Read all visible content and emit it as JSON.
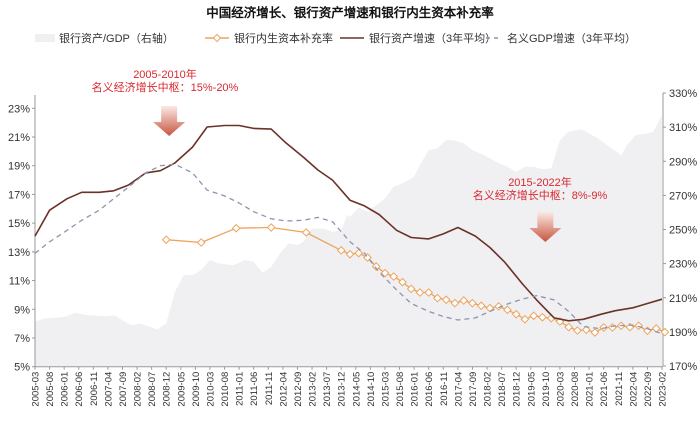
{
  "chart_data": {
    "type": "line",
    "title": "中国经济增长、银行资产增速和银行内生资本补充率",
    "x_ticks": [
      "2005-03",
      "2005-08",
      "2006-01",
      "2006-06",
      "2006-11",
      "2007-04",
      "2007-09",
      "2008-02",
      "2008-07",
      "2008-12",
      "2009-05",
      "2009-10",
      "2010-03",
      "2010-08",
      "2011-01",
      "2011-06",
      "2011-11",
      "2012-04",
      "2012-09",
      "2013-02",
      "2013-07",
      "2013-12",
      "2014-05",
      "2014-10",
      "2015-03",
      "2015-08",
      "2016-01",
      "2016-06",
      "2016-11",
      "2017-04",
      "2017-09",
      "2018-02",
      "2018-07",
      "2018-12",
      "2019-05",
      "2019-10",
      "2020-03",
      "2020-08",
      "2021-01",
      "2021-06",
      "2021-11",
      "2022-04",
      "2022-09",
      "2023-02"
    ],
    "y_left": {
      "ticks": [
        "5%",
        "7%",
        "9%",
        "11%",
        "13%",
        "15%",
        "17%",
        "19%",
        "21%",
        "23%"
      ],
      "range": [
        5,
        23
      ],
      "unit": "%"
    },
    "y_right": {
      "ticks": [
        "170%",
        "190%",
        "210%",
        "230%",
        "250%",
        "270%",
        "290%",
        "310%",
        "330%"
      ],
      "range": [
        170,
        330
      ],
      "unit": "%"
    },
    "grid": false,
    "legend_placement": "top",
    "series": [
      {
        "name": "银行资产/GDP（右轴）",
        "kind": "area",
        "axis": "right",
        "color": "#f0f0f3",
        "points": [
          [
            "2005-03",
            195.9
          ],
          [
            "2005-06",
            197.8
          ],
          [
            "2006-01",
            198.8
          ],
          [
            "2006-05",
            201.2
          ],
          [
            "2006-09",
            199.8
          ],
          [
            "2007-04",
            199.2
          ],
          [
            "2007-06",
            199.8
          ],
          [
            "2007-12",
            193.9
          ],
          [
            "2008-03",
            194.9
          ],
          [
            "2008-09",
            191.4
          ],
          [
            "2008-12",
            194.9
          ],
          [
            "2009-03",
            213.5
          ],
          [
            "2009-06",
            223.3
          ],
          [
            "2009-09",
            223.3
          ],
          [
            "2009-12",
            226.2
          ],
          [
            "2010-03",
            232.1
          ],
          [
            "2010-06",
            230.1
          ],
          [
            "2010-11",
            229.1
          ],
          [
            "2011-03",
            232.1
          ],
          [
            "2011-06",
            231.1
          ],
          [
            "2011-09",
            224.6
          ],
          [
            "2011-12",
            228.1
          ],
          [
            "2012-03",
            236.0
          ],
          [
            "2012-06",
            241.8
          ],
          [
            "2012-09",
            240.9
          ],
          [
            "2012-11",
            242.8
          ],
          [
            "2013-02",
            250.6
          ],
          [
            "2013-06",
            250.6
          ],
          [
            "2013-09",
            248.7
          ],
          [
            "2013-12",
            249.6
          ],
          [
            "2014-02",
            258.4
          ],
          [
            "2014-03",
            257.5
          ],
          [
            "2014-06",
            262.9
          ],
          [
            "2014-09",
            260.4
          ],
          [
            "2014-12",
            264.3
          ],
          [
            "2015-03",
            268.2
          ],
          [
            "2015-06",
            275.1
          ],
          [
            "2015-09",
            277.0
          ],
          [
            "2016-01",
            280.9
          ],
          [
            "2016-03",
            287.8
          ],
          [
            "2016-06",
            296.6
          ],
          [
            "2016-09",
            297.6
          ],
          [
            "2016-12",
            302.4
          ],
          [
            "2017-02",
            302.4
          ],
          [
            "2017-06",
            300.5
          ],
          [
            "2017-09",
            296.6
          ],
          [
            "2018-01",
            293.6
          ],
          [
            "2018-05",
            289.7
          ],
          [
            "2018-09",
            286.8
          ],
          [
            "2018-12",
            283.8
          ],
          [
            "2019-03",
            286.8
          ],
          [
            "2019-06",
            286.8
          ],
          [
            "2019-09",
            285.4
          ],
          [
            "2019-12",
            285.8
          ],
          [
            "2020-03",
            302.4
          ],
          [
            "2020-06",
            307.3
          ],
          [
            "2020-10",
            308.7
          ],
          [
            "2020-12",
            307.3
          ],
          [
            "2021-04",
            303.4
          ],
          [
            "2021-07",
            299.5
          ],
          [
            "2021-12",
            293.6
          ],
          [
            "2022-02",
            299.5
          ],
          [
            "2022-05",
            305.4
          ],
          [
            "2022-09",
            306.3
          ],
          [
            "2022-11",
            307.3
          ],
          [
            "2023-02",
            317.1
          ]
        ]
      },
      {
        "name": "银行内生资本补充率",
        "kind": "line-marker",
        "axis": "left",
        "color": "#eda35c",
        "points": [
          [
            "2008-12",
            13.85
          ],
          [
            "2009-12",
            13.65
          ],
          [
            "2010-12",
            14.65
          ],
          [
            "2011-12",
            14.7
          ],
          [
            "2012-12",
            14.35
          ],
          [
            "2013-12",
            13.1
          ],
          [
            "2014-03",
            12.84
          ],
          [
            "2014-06",
            12.91
          ],
          [
            "2014-09",
            12.61
          ],
          [
            "2014-12",
            11.98
          ],
          [
            "2015-03",
            11.52
          ],
          [
            "2015-06",
            11.28
          ],
          [
            "2015-09",
            10.89
          ],
          [
            "2015-12",
            10.42
          ],
          [
            "2016-03",
            10.17
          ],
          [
            "2016-06",
            10.17
          ],
          [
            "2016-09",
            9.78
          ],
          [
            "2016-12",
            9.66
          ],
          [
            "2017-03",
            9.43
          ],
          [
            "2017-06",
            9.61
          ],
          [
            "2017-09",
            9.43
          ],
          [
            "2017-12",
            9.24
          ],
          [
            "2018-03",
            9.08
          ],
          [
            "2018-06",
            9.2
          ],
          [
            "2018-09",
            8.96
          ],
          [
            "2018-12",
            8.66
          ],
          [
            "2019-03",
            8.31
          ],
          [
            "2019-06",
            8.55
          ],
          [
            "2019-09",
            8.45
          ],
          [
            "2019-12",
            8.38
          ],
          [
            "2020-03",
            8.15
          ],
          [
            "2020-06",
            7.76
          ],
          [
            "2020-09",
            7.52
          ],
          [
            "2020-12",
            7.57
          ],
          [
            "2021-03",
            7.38
          ],
          [
            "2021-06",
            7.73
          ],
          [
            "2021-09",
            7.73
          ],
          [
            "2021-12",
            7.85
          ],
          [
            "2022-03",
            7.76
          ],
          [
            "2022-06",
            7.85
          ],
          [
            "2022-09",
            7.5
          ],
          [
            "2022-12",
            7.66
          ],
          [
            "2023-03",
            7.41
          ]
        ]
      },
      {
        "name": "银行资产增速（3年平均）",
        "kind": "line",
        "axis": "left",
        "color": "#6b3226",
        "points": [
          [
            "2005-03",
            14.1
          ],
          [
            "2005-08",
            15.9
          ],
          [
            "2006-02",
            16.7
          ],
          [
            "2006-07",
            17.15
          ],
          [
            "2007-01",
            17.15
          ],
          [
            "2007-06",
            17.25
          ],
          [
            "2007-11",
            17.65
          ],
          [
            "2008-05",
            18.5
          ],
          [
            "2008-10",
            18.65
          ],
          [
            "2009-03",
            19.2
          ],
          [
            "2009-09",
            20.3
          ],
          [
            "2010-02",
            21.7
          ],
          [
            "2010-08",
            21.8
          ],
          [
            "2011-01",
            21.8
          ],
          [
            "2011-06",
            21.6
          ],
          [
            "2011-12",
            21.55
          ],
          [
            "2012-05",
            20.6
          ],
          [
            "2012-11",
            19.6
          ],
          [
            "2013-04",
            18.7
          ],
          [
            "2013-09",
            18.0
          ],
          [
            "2014-03",
            16.6
          ],
          [
            "2014-08",
            16.2
          ],
          [
            "2015-01",
            15.6
          ],
          [
            "2015-07",
            14.5
          ],
          [
            "2015-12",
            14.0
          ],
          [
            "2016-06",
            13.9
          ],
          [
            "2016-11",
            14.25
          ],
          [
            "2017-04",
            14.7
          ],
          [
            "2017-10",
            14.1
          ],
          [
            "2018-03",
            13.3
          ],
          [
            "2018-08",
            12.3
          ],
          [
            "2019-02",
            10.8
          ],
          [
            "2019-07",
            9.65
          ],
          [
            "2020-01",
            8.4
          ],
          [
            "2020-06",
            8.2
          ],
          [
            "2020-11",
            8.3
          ],
          [
            "2021-05",
            8.65
          ],
          [
            "2021-10",
            8.9
          ],
          [
            "2022-04",
            9.1
          ],
          [
            "2022-09",
            9.4
          ],
          [
            "2023-02",
            9.7
          ]
        ]
      },
      {
        "name": "名义GDP增速（3年平均）",
        "kind": "dashed",
        "axis": "left",
        "color": "#8d94ae",
        "points": [
          [
            "2005-03",
            12.9
          ],
          [
            "2005-08",
            13.7
          ],
          [
            "2006-02",
            14.5
          ],
          [
            "2006-07",
            15.2
          ],
          [
            "2007-01",
            15.9
          ],
          [
            "2007-06",
            16.7
          ],
          [
            "2007-11",
            17.5
          ],
          [
            "2008-05",
            18.5
          ],
          [
            "2008-10",
            19.0
          ],
          [
            "2009-03",
            19.1
          ],
          [
            "2009-09",
            18.5
          ],
          [
            "2010-02",
            17.3
          ],
          [
            "2010-08",
            16.9
          ],
          [
            "2011-01",
            16.4
          ],
          [
            "2011-06",
            15.8
          ],
          [
            "2011-12",
            15.3
          ],
          [
            "2012-05",
            15.15
          ],
          [
            "2012-11",
            15.2
          ],
          [
            "2013-04",
            15.4
          ],
          [
            "2013-09",
            15.1
          ],
          [
            "2014-03",
            13.7
          ],
          [
            "2014-08",
            12.9
          ],
          [
            "2015-01",
            11.6
          ],
          [
            "2015-07",
            10.35
          ],
          [
            "2015-12",
            9.4
          ],
          [
            "2016-06",
            8.85
          ],
          [
            "2016-11",
            8.5
          ],
          [
            "2017-04",
            8.25
          ],
          [
            "2017-10",
            8.4
          ],
          [
            "2018-03",
            8.85
          ],
          [
            "2018-08",
            9.3
          ],
          [
            "2019-02",
            9.7
          ],
          [
            "2019-07",
            9.95
          ],
          [
            "2020-01",
            9.65
          ],
          [
            "2020-06",
            8.85
          ],
          [
            "2020-11",
            7.8
          ],
          [
            "2021-05",
            7.65
          ],
          [
            "2021-10",
            7.85
          ],
          [
            "2022-04",
            7.9
          ],
          [
            "2022-09",
            7.65
          ],
          [
            "2023-02",
            7.3
          ]
        ]
      }
    ],
    "annotations": [
      {
        "line1": "2005-2010年",
        "line2": "名义经济增长中枢：15%-20%",
        "arrow_at": "2009-01",
        "color": "#d9282f"
      },
      {
        "line1": "2015-2022年",
        "line2": "名义经济增长中枢：8%-9%",
        "arrow_at": "2019-10",
        "color": "#d9282f"
      }
    ]
  }
}
